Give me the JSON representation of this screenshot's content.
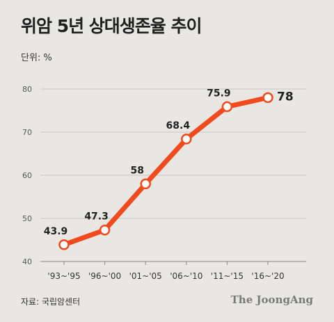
{
  "title": "위암 5년 상대생존율 추이",
  "unit": "단위: %",
  "source": "자료: 국립암센터",
  "brand": "The JoongAng",
  "colors": {
    "line": "#f04a1e",
    "marker_fill": "#ffffff",
    "grid": "#c9c7c4",
    "axis": "#8a8884"
  },
  "chart_data": {
    "type": "line",
    "categories": [
      "'93~'95",
      "'96~'00",
      "'01~'05",
      "'06~'10",
      "'11~'15",
      "'16~'20"
    ],
    "series": [
      {
        "values": [
          43.9,
          47.3,
          58,
          68.4,
          75.9,
          78
        ]
      }
    ],
    "data_labels": [
      "43.9",
      "47.3",
      "58",
      "68.4",
      "75.9",
      "78"
    ],
    "yticks": [
      40,
      50,
      60,
      70,
      80
    ],
    "ylim": [
      40,
      80
    ],
    "grid": true
  }
}
